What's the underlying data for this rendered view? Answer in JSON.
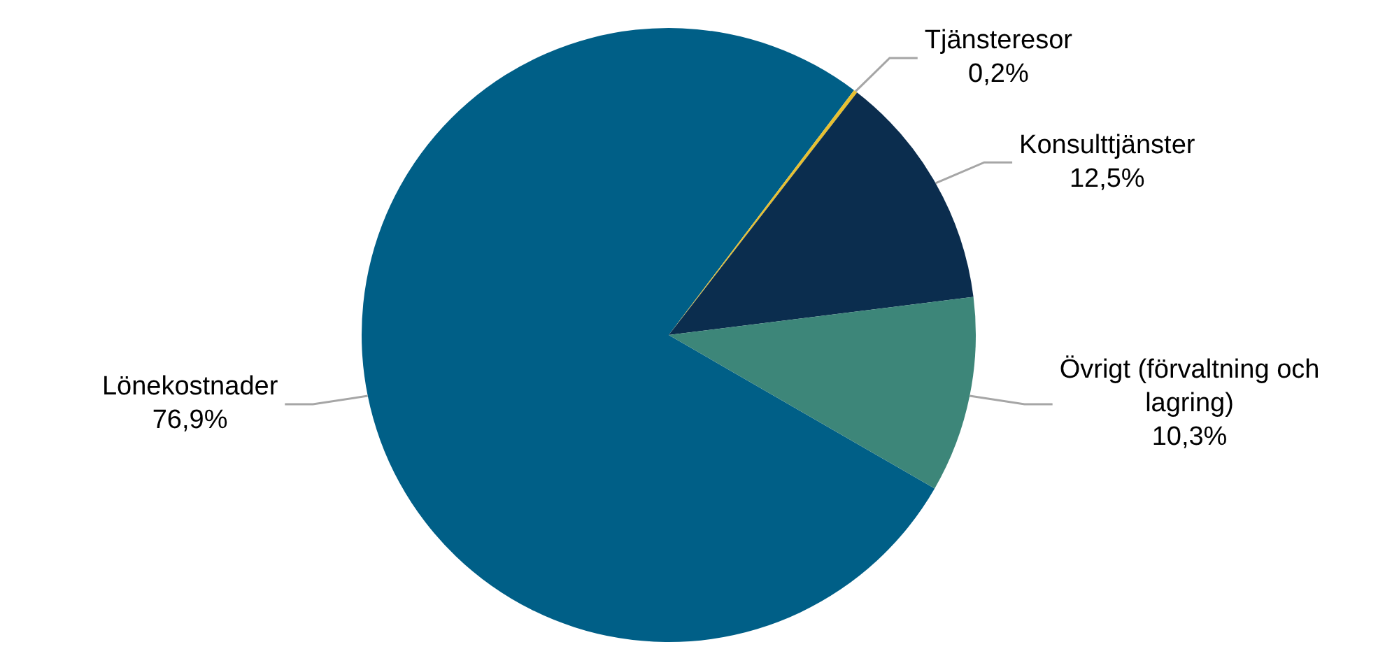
{
  "chart_data": {
    "type": "pie",
    "categories": [
      "Lönekostnader",
      "Tjänsteresor",
      "Konsulttjänster",
      "Övrigt (förvaltning och lagring)"
    ],
    "values": [
      76.9,
      0.2,
      12.5,
      10.3
    ],
    "value_labels": [
      "76,9%",
      "0,2%",
      "12,5%",
      "10,3%"
    ],
    "colors": [
      "#005f87",
      "#e8c030",
      "#0b2d4e",
      "#3d8679"
    ],
    "legend": false
  }
}
